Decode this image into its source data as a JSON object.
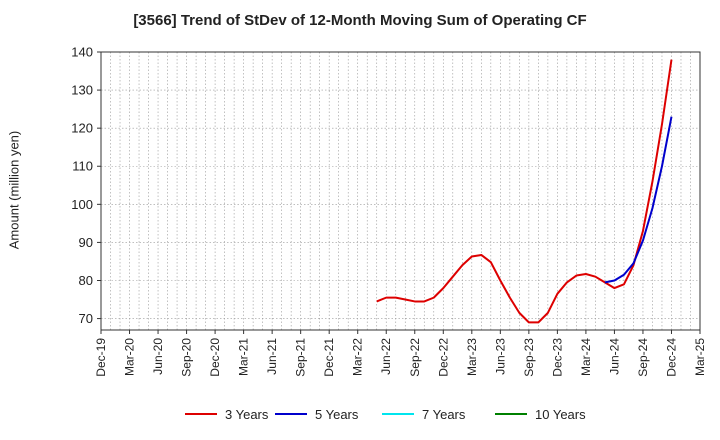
{
  "chart_data": {
    "type": "line",
    "title": "[3566]  Trend of StDev of 12-Month Moving Sum of Operating CF",
    "xlabel": "",
    "ylabel": "Amount (million yen)",
    "ylim": [
      67,
      140
    ],
    "yticks": [
      70,
      80,
      90,
      100,
      110,
      120,
      130,
      140
    ],
    "x_tick_labels": [
      "Dec-19",
      "Mar-20",
      "Jun-20",
      "Sep-20",
      "Dec-20",
      "Mar-21",
      "Jun-21",
      "Sep-21",
      "Dec-21",
      "Mar-22",
      "Jun-22",
      "Sep-22",
      "Dec-22",
      "Mar-23",
      "Jun-23",
      "Sep-23",
      "Dec-23",
      "Mar-24",
      "Jun-24",
      "Sep-24",
      "Dec-24",
      "Mar-25"
    ],
    "x_months": [
      "2019-12",
      "2020-01",
      "2020-02",
      "2020-03",
      "2020-04",
      "2020-05",
      "2020-06",
      "2020-07",
      "2020-08",
      "2020-09",
      "2020-10",
      "2020-11",
      "2020-12",
      "2021-01",
      "2021-02",
      "2021-03",
      "2021-04",
      "2021-05",
      "2021-06",
      "2021-07",
      "2021-08",
      "2021-09",
      "2021-10",
      "2021-11",
      "2021-12",
      "2022-01",
      "2022-02",
      "2022-03",
      "2022-04",
      "2022-05",
      "2022-06",
      "2022-07",
      "2022-08",
      "2022-09",
      "2022-10",
      "2022-11",
      "2022-12",
      "2023-01",
      "2023-02",
      "2023-03",
      "2023-04",
      "2023-05",
      "2023-06",
      "2023-07",
      "2023-08",
      "2023-09",
      "2023-10",
      "2023-11",
      "2023-12",
      "2024-01",
      "2024-02",
      "2024-03",
      "2024-04",
      "2024-05",
      "2024-06",
      "2024-07",
      "2024-08",
      "2024-09",
      "2024-10",
      "2024-11",
      "2024-12",
      "2025-01",
      "2025-02",
      "2025-03"
    ],
    "grid": true,
    "legend_position": "bottom",
    "series": [
      {
        "name": "3 Years",
        "color": "#dd0000",
        "points": [
          [
            "2022-05",
            74.5
          ],
          [
            "2022-06",
            75.5
          ],
          [
            "2022-07",
            75.5
          ],
          [
            "2022-08",
            75.0
          ],
          [
            "2022-09",
            74.5
          ],
          [
            "2022-10",
            74.5
          ],
          [
            "2022-11",
            75.5
          ],
          [
            "2022-12",
            78.0
          ],
          [
            "2023-01",
            81.0
          ],
          [
            "2023-02",
            84.0
          ],
          [
            "2023-03",
            86.3
          ],
          [
            "2023-04",
            86.7
          ],
          [
            "2023-05",
            84.8
          ],
          [
            "2023-06",
            80.0
          ],
          [
            "2023-07",
            75.5
          ],
          [
            "2023-08",
            71.5
          ],
          [
            "2023-09",
            69.0
          ],
          [
            "2023-10",
            69.0
          ],
          [
            "2023-11",
            71.5
          ],
          [
            "2023-12",
            76.5
          ],
          [
            "2024-01",
            79.5
          ],
          [
            "2024-02",
            81.3
          ],
          [
            "2024-03",
            81.7
          ],
          [
            "2024-04",
            81.0
          ],
          [
            "2024-05",
            79.5
          ],
          [
            "2024-06",
            78.0
          ],
          [
            "2024-07",
            79.0
          ],
          [
            "2024-08",
            84.0
          ],
          [
            "2024-09",
            93.0
          ],
          [
            "2024-10",
            106.0
          ],
          [
            "2024-11",
            121.0
          ],
          [
            "2024-12",
            138.0
          ]
        ]
      },
      {
        "name": "5 Years",
        "color": "#0000cc",
        "points": [
          [
            "2024-05",
            79.5
          ],
          [
            "2024-06",
            80.0
          ],
          [
            "2024-07",
            81.5
          ],
          [
            "2024-08",
            84.5
          ],
          [
            "2024-09",
            90.5
          ],
          [
            "2024-10",
            99.0
          ],
          [
            "2024-11",
            110.0
          ],
          [
            "2024-12",
            123.0
          ]
        ]
      },
      {
        "name": "7 Years",
        "color": "#00e5ee",
        "points": []
      },
      {
        "name": "10 Years",
        "color": "#008000",
        "points": []
      }
    ]
  }
}
